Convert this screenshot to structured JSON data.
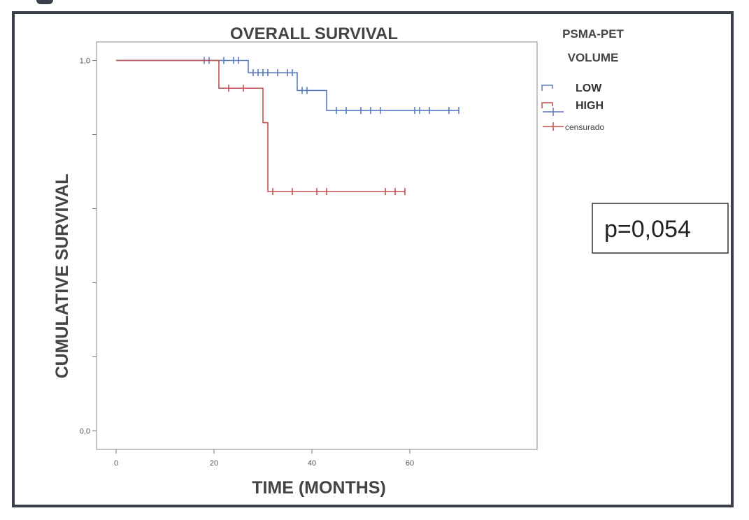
{
  "chart_data": {
    "type": "line",
    "title": "OVERALL SURVIVAL",
    "xlabel": "TIME (MONTHS)",
    "ylabel": "CUMULATIVE SURVIVAL",
    "xlim": [
      -4,
      86
    ],
    "ylim": [
      -0.05,
      1.05
    ],
    "x_ticks": [
      0,
      20,
      40,
      60
    ],
    "x_tick_labels": [
      "0",
      "20",
      "40",
      "60"
    ],
    "y_ticks": [
      0.0,
      0.2,
      0.4,
      0.6,
      0.8,
      1.0
    ],
    "y_tick_labels": [
      "0,0",
      "",
      "",
      "",
      "",
      "1,0"
    ],
    "grid": false,
    "legend_title": "PSMA-PET VOLUME",
    "legend_position": "right",
    "annotation": "p=0,054",
    "series": [
      {
        "name": "LOW",
        "color": "#5b7ac2",
        "steps": [
          [
            0,
            1.0
          ],
          [
            27,
            0.967
          ],
          [
            37,
            0.919
          ],
          [
            43,
            0.865
          ],
          [
            70,
            0.865
          ]
        ],
        "censored": [
          18,
          19,
          22,
          24,
          25,
          28,
          29,
          30,
          31,
          33,
          35,
          36,
          38,
          39,
          45,
          47,
          50,
          52,
          54,
          61,
          62,
          64,
          68,
          70
        ]
      },
      {
        "name": "HIGH",
        "color": "#c0504d",
        "steps": [
          [
            0,
            1.0
          ],
          [
            21,
            0.925
          ],
          [
            30,
            0.832
          ],
          [
            31,
            0.646
          ],
          [
            59,
            0.646
          ]
        ],
        "censored": [
          23,
          26,
          32,
          36,
          41,
          43,
          55,
          57,
          59
        ]
      }
    ],
    "censor_label": "censurado"
  }
}
